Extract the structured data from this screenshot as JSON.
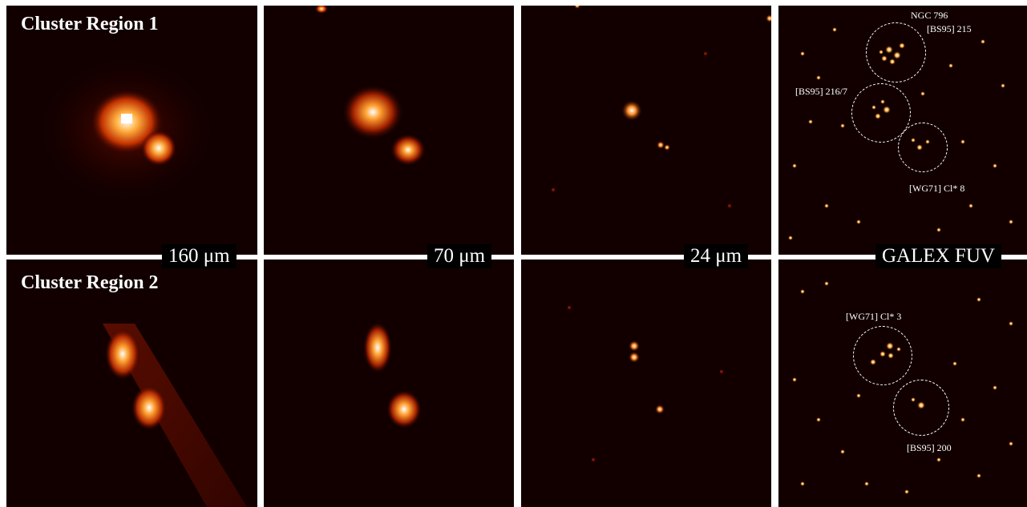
{
  "rows": [
    {
      "label": "Cluster Region 1"
    },
    {
      "label": "Cluster Region 2"
    }
  ],
  "bands": [
    {
      "label": "160 μm"
    },
    {
      "label": "70 μm"
    },
    {
      "label": "24 μm"
    },
    {
      "label": "GALEX FUV"
    }
  ],
  "annotations": {
    "region1": [
      "NGC 796",
      "[BS95] 215",
      "[BS95] 216/7",
      "[WG71] Cl* 8"
    ],
    "region2": [
      "[WG71] Cl* 3",
      "[BS95] 200"
    ]
  },
  "colors": {
    "background": "#120000",
    "hot": "#ffffff",
    "warm": "#ff9a20",
    "cool": "#8a1200"
  }
}
